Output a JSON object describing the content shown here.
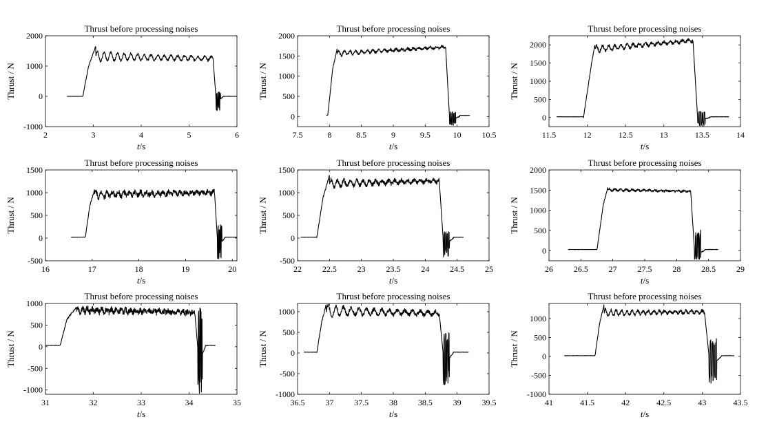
{
  "figure": {
    "chart_data": [
      {
        "type": "line",
        "title": "Thrust before processing noises",
        "xlabel_var": "t",
        "xlabel_unit": "/s",
        "ylabel": "Thrust / N",
        "xlim": [
          2,
          6
        ],
        "ylim": [
          -1000,
          2000
        ],
        "xticks": [
          "2",
          "3",
          "4",
          "5",
          "6"
        ],
        "yticks": [
          "-1000",
          "0",
          "1000",
          "2000"
        ],
        "profile": {
          "t0": 2.45,
          "ton": 2.78,
          "trise": 2.9,
          "tpeak": 3.05,
          "tdrop": 5.5,
          "tend": 6.0,
          "plateau": 1250,
          "start_level": 1320,
          "peak": 1660,
          "osc_amp": 120,
          "osc_period": 0.14,
          "noise": 40,
          "dip": -520,
          "spike": 160,
          "tail": 0
        }
      },
      {
        "type": "line",
        "title": "Thrust before processing noises",
        "xlabel_var": "t",
        "xlabel_unit": "/s",
        "ylabel": "Thrust / N",
        "xlim": [
          7.5,
          10.5
        ],
        "ylim": [
          -250,
          2000
        ],
        "xticks": [
          "7.5",
          "8",
          "8.5",
          "9",
          "9.5",
          "10",
          "10.5"
        ],
        "yticks": [
          "0",
          "500",
          "1000",
          "1500",
          "2000"
        ],
        "profile": {
          "t0": 7.95,
          "ton": 7.97,
          "trise": 8.05,
          "tpeak": 8.12,
          "tdrop": 9.82,
          "tend": 10.2,
          "plateau": 1720,
          "start_level": 1560,
          "peak": 1680,
          "osc_amp": 40,
          "osc_period": 0.09,
          "noise": 30,
          "dip": -220,
          "spike": 120,
          "tail": 30
        }
      },
      {
        "type": "line",
        "title": "Thrust before processing noises",
        "xlabel_var": "t",
        "xlabel_unit": "/s",
        "ylabel": "Thrust / N",
        "xlim": [
          11.5,
          14
        ],
        "ylim": [
          -250,
          2250
        ],
        "xticks": [
          "11.5",
          "12",
          "12.5",
          "13",
          "13.5",
          "14"
        ],
        "yticks": [
          "0",
          "500",
          "1000",
          "1500",
          "2000"
        ],
        "profile": {
          "t0": 11.6,
          "ton": 11.95,
          "trise": 12.05,
          "tpeak": 12.1,
          "tdrop": 13.38,
          "tend": 13.85,
          "plateau": 2120,
          "start_level": 1880,
          "peak": 2020,
          "osc_amp": 60,
          "osc_period": 0.08,
          "noise": 40,
          "dip": -240,
          "spike": 180,
          "tail": 20
        }
      },
      {
        "type": "line",
        "title": "Thrust before processing noises",
        "xlabel_var": "t",
        "xlabel_unit": "/s",
        "ylabel": "Thrust / N",
        "xlim": [
          16,
          20.1
        ],
        "ylim": [
          -500,
          1500
        ],
        "xticks": [
          "16",
          "17",
          "18",
          "19",
          "20"
        ],
        "yticks": [
          "-500",
          "0",
          "500",
          "1000",
          "1500"
        ],
        "profile": {
          "t0": 16.55,
          "ton": 16.85,
          "trise": 16.95,
          "tpeak": 17.05,
          "tdrop": 19.62,
          "tend": 20.1,
          "plateau": 1000,
          "start_level": 960,
          "peak": 1060,
          "osc_amp": 50,
          "osc_period": 0.12,
          "noise": 55,
          "dip": -460,
          "spike": 300,
          "tail": 20
        }
      },
      {
        "type": "line",
        "title": "Thrust before processing noises",
        "xlabel_var": "t",
        "xlabel_unit": "/s",
        "ylabel": "Thrust / N",
        "xlim": [
          22,
          25
        ],
        "ylim": [
          -500,
          1500
        ],
        "xticks": [
          "22",
          "22.5",
          "23",
          "23.5",
          "24",
          "24.5",
          "25"
        ],
        "yticks": [
          "-500",
          "0",
          "500",
          "1000",
          "1500"
        ],
        "profile": {
          "t0": 22.05,
          "ton": 22.3,
          "trise": 22.4,
          "tpeak": 22.5,
          "tdrop": 24.22,
          "tend": 24.6,
          "plateau": 1260,
          "start_level": 1200,
          "peak": 1380,
          "osc_amp": 60,
          "osc_period": 0.1,
          "noise": 45,
          "dip": -420,
          "spike": 140,
          "tail": 20
        }
      },
      {
        "type": "line",
        "title": "Thrust before processing noises",
        "xlabel_var": "t",
        "xlabel_unit": "/s",
        "ylabel": "Thrust / N",
        "xlim": [
          26,
          29
        ],
        "ylim": [
          -250,
          2000
        ],
        "xticks": [
          "26",
          "26.5",
          "27",
          "27.5",
          "28",
          "28.5",
          "29"
        ],
        "yticks": [
          "0",
          "500",
          "1000",
          "1500",
          "2000"
        ],
        "profile": {
          "t0": 26.3,
          "ton": 26.75,
          "trise": 26.85,
          "tpeak": 26.92,
          "tdrop": 28.22,
          "tend": 28.65,
          "plateau": 1470,
          "start_level": 1510,
          "peak": 1560,
          "osc_amp": 20,
          "osc_period": 0.09,
          "noise": 25,
          "dip": -220,
          "spike": 560,
          "tail": 30
        }
      },
      {
        "type": "line",
        "title": "Thrust before processing noises",
        "xlabel_var": "t",
        "xlabel_unit": "/s",
        "ylabel": "Thrust / N",
        "xlim": [
          31,
          35
        ],
        "ylim": [
          -1100,
          1000
        ],
        "xticks": [
          "31",
          "32",
          "33",
          "34",
          "35"
        ],
        "yticks": [
          "-1000",
          "-500",
          "0",
          "500",
          "1000"
        ],
        "profile": {
          "t0": 31.0,
          "ton": 31.3,
          "trise": 31.45,
          "tpeak": 31.65,
          "tdrop": 34.12,
          "tend": 34.55,
          "plateau": 790,
          "start_level": 850,
          "peak": 920,
          "osc_amp": 40,
          "osc_period": 0.1,
          "noise": 65,
          "dip": -1080,
          "spike": 900,
          "tail": 30
        }
      },
      {
        "type": "line",
        "title": "Thrust before processing noises",
        "xlabel_var": "t",
        "xlabel_unit": "/s",
        "ylabel": "Thrust / N",
        "xlim": [
          36.5,
          39.5
        ],
        "ylim": [
          -1000,
          1200
        ],
        "xticks": [
          "36.5",
          "37",
          "37.5",
          "38",
          "38.5",
          "39",
          "39.5"
        ],
        "yticks": [
          "-1000",
          "-500",
          "0",
          "500",
          "1000"
        ],
        "profile": {
          "t0": 36.6,
          "ton": 36.8,
          "trise": 36.88,
          "tpeak": 36.95,
          "tdrop": 38.72,
          "tend": 39.18,
          "plateau": 960,
          "start_level": 1020,
          "peak": 1180,
          "osc_amp": 90,
          "osc_period": 0.12,
          "noise": 45,
          "dip": -780,
          "spike": 560,
          "tail": 20
        }
      },
      {
        "type": "line",
        "title": "Thrust before processing noises",
        "xlabel_var": "t",
        "xlabel_unit": "/s",
        "ylabel": "Thrust / N",
        "xlim": [
          41,
          43.5
        ],
        "ylim": [
          -1000,
          1400
        ],
        "xticks": [
          "41",
          "41.5",
          "42",
          "42.5",
          "43",
          "43.5"
        ],
        "yticks": [
          "-1000",
          "-500",
          "0",
          "500",
          "1000"
        ],
        "profile": {
          "t0": 41.2,
          "ton": 41.6,
          "trise": 41.66,
          "tpeak": 41.72,
          "tdrop": 43.03,
          "tend": 43.42,
          "plateau": 1180,
          "start_level": 1150,
          "peak": 1380,
          "osc_amp": 60,
          "osc_period": 0.07,
          "noise": 40,
          "dip": -800,
          "spike": 500,
          "tail": 20
        }
      }
    ]
  }
}
